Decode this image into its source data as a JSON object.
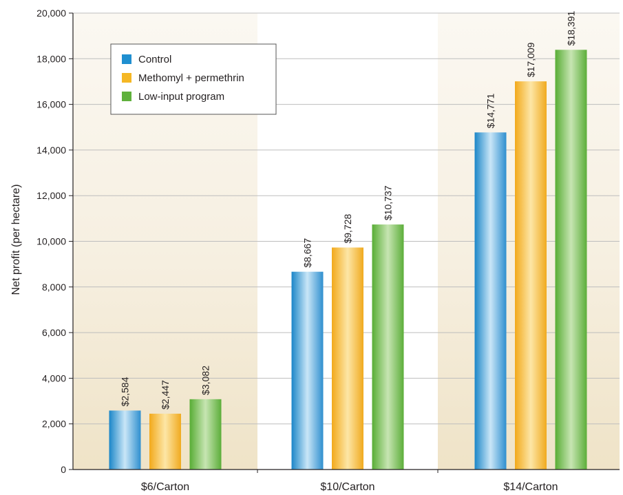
{
  "chart_data": {
    "type": "bar",
    "categories": [
      "$6/Carton",
      "$10/Carton",
      "$14/Carton"
    ],
    "series": [
      {
        "name": "Control",
        "values": [
          2584,
          8667,
          14771
        ],
        "labels": [
          "$2,584",
          "$8,667",
          "$14,771"
        ],
        "color": "#1f8fd0"
      },
      {
        "name": "Methomyl + permethrin",
        "values": [
          2447,
          9728,
          17009
        ],
        "labels": [
          "$2,447",
          "$9,728",
          "$17,009"
        ],
        "color": "#f5b724"
      },
      {
        "name": "Low-input program",
        "values": [
          3082,
          10737,
          18391
        ],
        "labels": [
          "$3,082",
          "$10,737",
          "$18,391"
        ],
        "color": "#5fb13c"
      }
    ],
    "xlabel": "",
    "ylabel": "Net profit (per hectare)",
    "ylim": [
      0,
      20000
    ],
    "yticks": [
      0,
      2000,
      4000,
      6000,
      8000,
      10000,
      12000,
      14000,
      16000,
      18000,
      20000
    ],
    "ytick_labels": [
      "0",
      "2,000",
      "4,000",
      "6,000",
      "8,000",
      "10,000",
      "12,000",
      "14,000",
      "16,000",
      "18,000",
      "20,000"
    ],
    "grid": true,
    "legend_position": "top-left",
    "background_bands": [
      "shaded",
      "white",
      "shaded"
    ]
  }
}
